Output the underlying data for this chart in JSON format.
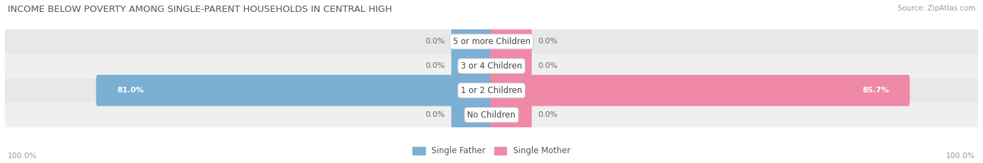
{
  "title": "INCOME BELOW POVERTY AMONG SINGLE-PARENT HOUSEHOLDS IN CENTRAL HIGH",
  "source": "Source: ZipAtlas.com",
  "categories": [
    "No Children",
    "1 or 2 Children",
    "3 or 4 Children",
    "5 or more Children"
  ],
  "father_values": [
    0.0,
    81.0,
    0.0,
    0.0
  ],
  "mother_values": [
    0.0,
    85.7,
    0.0,
    0.0
  ],
  "father_color": "#7bafd4",
  "mother_color": "#f088a8",
  "row_bg_colors": [
    "#efefef",
    "#e8e8e8",
    "#efefef",
    "#e8e8e8"
  ],
  "axis_label_left": "100.0%",
  "axis_label_right": "100.0%",
  "title_fontsize": 9.5,
  "source_fontsize": 7.5,
  "label_fontsize": 8,
  "max_val": 100.0,
  "zero_stub": 8.0
}
